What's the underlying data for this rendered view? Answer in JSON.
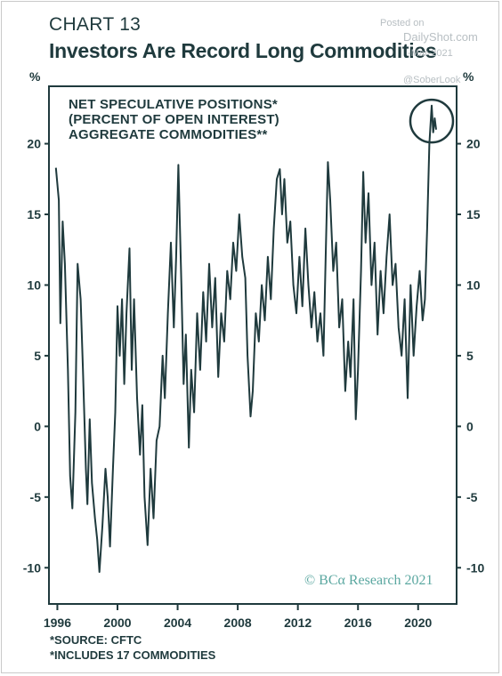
{
  "header": {
    "chart_label": "CHART 13",
    "title": "Investors Are Record Long Commodities"
  },
  "watermark": {
    "posted": "Posted on",
    "site": "DailyShot.com",
    "date": "-Mar-2021",
    "handle": "@SoberLook"
  },
  "footnotes": [
    "*SOURCE: CFTC",
    "*INCLUDES 17 COMMODITIES"
  ],
  "copyright": "© BCα Research 2021",
  "colors": {
    "line": "#1f3a3d",
    "text": "#1f3a3d",
    "copyright": "#5aa7a0",
    "watermark": "#b8bfc3"
  },
  "chart_data": {
    "type": "line",
    "title": "Investors Are Record Long Commodities",
    "series_label_lines": [
      "NET SPECULATIVE POSITIONS*",
      "(PERCENT OF OPEN INTEREST)",
      "AGGREGATE COMMODITIES**"
    ],
    "ylabel_left": "%",
    "ylabel_right": "%",
    "xlim": [
      1995.5,
      2022.5
    ],
    "ylim": [
      -12.5,
      24
    ],
    "x_ticks": [
      1996,
      2000,
      2004,
      2008,
      2012,
      2016,
      2020
    ],
    "x_tick_labels": [
      "1996",
      "2000",
      "2004",
      "2008",
      "2012",
      "2016",
      "2020"
    ],
    "y_ticks": [
      -10,
      -5,
      0,
      5,
      10,
      15,
      20
    ],
    "y_tick_labels": [
      "-10",
      "-5",
      "0",
      "5",
      "10",
      "15",
      "20"
    ],
    "annotation": {
      "type": "circle",
      "x": 2020.9,
      "y": 21.6,
      "note": "record high highlighted"
    },
    "series": [
      {
        "values": [
          [
            1995.9,
            18.3
          ],
          [
            1996.1,
            16.0
          ],
          [
            1996.2,
            7.3
          ],
          [
            1996.35,
            14.5
          ],
          [
            1996.5,
            11.5
          ],
          [
            1996.7,
            4.0
          ],
          [
            1996.85,
            -3.5
          ],
          [
            1997.0,
            -5.8
          ],
          [
            1997.2,
            1.0
          ],
          [
            1997.35,
            11.5
          ],
          [
            1997.55,
            9.0
          ],
          [
            1997.7,
            4.0
          ],
          [
            1997.9,
            -3.0
          ],
          [
            1998.0,
            -5.5
          ],
          [
            1998.15,
            0.5
          ],
          [
            1998.3,
            -4.0
          ],
          [
            1998.5,
            -6.5
          ],
          [
            1998.65,
            -8.0
          ],
          [
            1998.8,
            -10.3
          ],
          [
            1999.0,
            -7.0
          ],
          [
            1999.2,
            -3.0
          ],
          [
            1999.35,
            -5.0
          ],
          [
            1999.5,
            -8.5
          ],
          [
            1999.7,
            -3.0
          ],
          [
            1999.85,
            1.0
          ],
          [
            2000.0,
            8.5
          ],
          [
            2000.15,
            5.0
          ],
          [
            2000.3,
            9.0
          ],
          [
            2000.45,
            3.0
          ],
          [
            2000.6,
            8.0
          ],
          [
            2000.8,
            12.6
          ],
          [
            2000.95,
            4.0
          ],
          [
            2001.1,
            9.0
          ],
          [
            2001.3,
            2.0
          ],
          [
            2001.5,
            -2.0
          ],
          [
            2001.65,
            1.5
          ],
          [
            2001.8,
            -5.0
          ],
          [
            2002.0,
            -8.4
          ],
          [
            2002.2,
            -3.0
          ],
          [
            2002.4,
            -6.5
          ],
          [
            2002.6,
            -1.0
          ],
          [
            2002.8,
            0.0
          ],
          [
            2003.0,
            5.0
          ],
          [
            2003.15,
            2.0
          ],
          [
            2003.35,
            8.0
          ],
          [
            2003.55,
            13.0
          ],
          [
            2003.75,
            7.0
          ],
          [
            2003.9,
            12.0
          ],
          [
            2004.05,
            18.5
          ],
          [
            2004.25,
            10.0
          ],
          [
            2004.4,
            3.0
          ],
          [
            2004.55,
            6.5
          ],
          [
            2004.75,
            -1.5
          ],
          [
            2004.9,
            4.0
          ],
          [
            2005.1,
            1.0
          ],
          [
            2005.3,
            8.0
          ],
          [
            2005.5,
            4.0
          ],
          [
            2005.7,
            9.5
          ],
          [
            2005.9,
            6.0
          ],
          [
            2006.1,
            11.5
          ],
          [
            2006.3,
            7.0
          ],
          [
            2006.5,
            10.5
          ],
          [
            2006.7,
            3.5
          ],
          [
            2006.9,
            8.0
          ],
          [
            2007.1,
            6.0
          ],
          [
            2007.3,
            11.0
          ],
          [
            2007.5,
            9.0
          ],
          [
            2007.7,
            13.0
          ],
          [
            2007.9,
            11.0
          ],
          [
            2008.1,
            15.0
          ],
          [
            2008.3,
            12.0
          ],
          [
            2008.5,
            10.5
          ],
          [
            2008.65,
            5.0
          ],
          [
            2008.85,
            0.7
          ],
          [
            2009.0,
            2.5
          ],
          [
            2009.2,
            8.0
          ],
          [
            2009.4,
            6.0
          ],
          [
            2009.6,
            10.0
          ],
          [
            2009.8,
            7.5
          ],
          [
            2010.0,
            12.0
          ],
          [
            2010.2,
            9.0
          ],
          [
            2010.4,
            14.0
          ],
          [
            2010.6,
            17.5
          ],
          [
            2010.8,
            18.2
          ],
          [
            2010.95,
            15.0
          ],
          [
            2011.1,
            17.5
          ],
          [
            2011.3,
            13.0
          ],
          [
            2011.5,
            14.5
          ],
          [
            2011.7,
            10.0
          ],
          [
            2011.9,
            8.0
          ],
          [
            2012.1,
            12.0
          ],
          [
            2012.3,
            8.5
          ],
          [
            2012.5,
            14.0
          ],
          [
            2012.7,
            10.0
          ],
          [
            2012.9,
            7.0
          ],
          [
            2013.1,
            9.5
          ],
          [
            2013.3,
            6.0
          ],
          [
            2013.5,
            8.0
          ],
          [
            2013.7,
            5.0
          ],
          [
            2013.85,
            12.0
          ],
          [
            2014.0,
            18.7
          ],
          [
            2014.15,
            16.0
          ],
          [
            2014.35,
            11.0
          ],
          [
            2014.55,
            13.0
          ],
          [
            2014.75,
            7.0
          ],
          [
            2014.95,
            9.0
          ],
          [
            2015.15,
            2.5
          ],
          [
            2015.35,
            6.0
          ],
          [
            2015.5,
            3.5
          ],
          [
            2015.7,
            9.0
          ],
          [
            2015.85,
            0.5
          ],
          [
            2016.0,
            4.0
          ],
          [
            2016.2,
            11.0
          ],
          [
            2016.35,
            18.0
          ],
          [
            2016.5,
            13.0
          ],
          [
            2016.7,
            16.5
          ],
          [
            2016.9,
            10.0
          ],
          [
            2017.1,
            13.0
          ],
          [
            2017.3,
            6.5
          ],
          [
            2017.5,
            11.0
          ],
          [
            2017.7,
            8.0
          ],
          [
            2017.9,
            12.0
          ],
          [
            2018.1,
            15.0
          ],
          [
            2018.3,
            10.0
          ],
          [
            2018.5,
            11.5
          ],
          [
            2018.7,
            7.0
          ],
          [
            2018.9,
            5.0
          ],
          [
            2019.1,
            9.0
          ],
          [
            2019.3,
            2.0
          ],
          [
            2019.5,
            10.0
          ],
          [
            2019.7,
            5.0
          ],
          [
            2019.9,
            8.5
          ],
          [
            2020.1,
            11.0
          ],
          [
            2020.3,
            7.5
          ],
          [
            2020.45,
            9.0
          ],
          [
            2020.6,
            14.0
          ],
          [
            2020.75,
            20.0
          ],
          [
            2020.9,
            22.7
          ],
          [
            2021.0,
            20.8
          ],
          [
            2021.1,
            21.8
          ],
          [
            2021.2,
            21.0
          ]
        ]
      }
    ]
  }
}
